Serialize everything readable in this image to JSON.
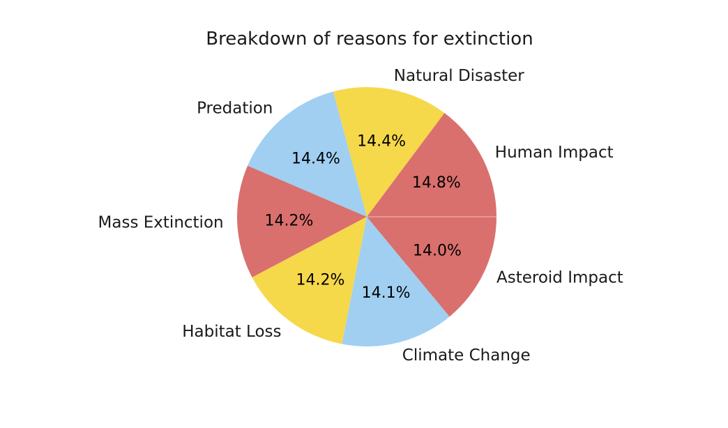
{
  "chart_data": {
    "type": "pie",
    "title": "Breakdown of reasons for extinction",
    "start_angle_deg": 0,
    "direction": "counterclockwise",
    "percent_label_format": "{value}%",
    "slices": [
      {
        "label": "Human Impact",
        "value": 14.8,
        "color": "#d9706e"
      },
      {
        "label": "Natural Disaster",
        "value": 14.4,
        "color": "#f6d84b"
      },
      {
        "label": "Predation",
        "value": 14.4,
        "color": "#a0cff1"
      },
      {
        "label": "Mass Extinction",
        "value": 14.2,
        "color": "#d9706e"
      },
      {
        "label": "Habitat Loss",
        "value": 14.2,
        "color": "#f6d84b"
      },
      {
        "label": "Climate Change",
        "value": 14.1,
        "color": "#a0cff1"
      },
      {
        "label": "Asteroid Impact",
        "value": 14.0,
        "color": "#d9706e"
      }
    ]
  }
}
